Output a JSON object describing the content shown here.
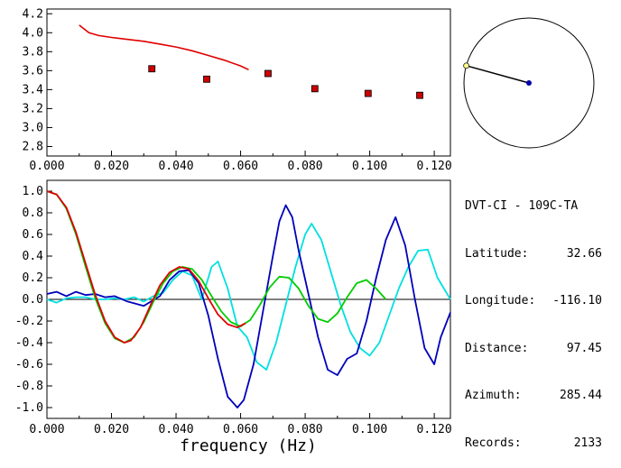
{
  "station": {
    "title": "DVT-CI - 109C-TA",
    "latitude_label": "Latitude:",
    "latitude": "32.66",
    "longitude_label": "Longitude:",
    "longitude": "-116.10",
    "distance_label": "Distance:",
    "distance": "97.45",
    "azimuth_label": "Azimuth:",
    "azimuth": "285.44",
    "records_label": "Records:",
    "records": "2133"
  },
  "colors": {
    "red": "#e00000",
    "green": "#00cc00",
    "blue": "#0000bb",
    "cyan": "#00e0e0",
    "marker_fill": "#cc0000",
    "station_dot": "#ffff88",
    "center_dot": "#0000aa"
  },
  "chart_data": [
    {
      "type": "scatter",
      "name": "dispersion",
      "xlim": [
        0.0,
        0.125
      ],
      "ylim": [
        2.7,
        4.25
      ],
      "xticks": [
        "0.000",
        "0.020",
        "0.040",
        "0.060",
        "0.080",
        "0.100",
        "0.120"
      ],
      "yticks": [
        "2.8",
        "3.0",
        "3.2",
        "3.4",
        "3.6",
        "3.8",
        "4.0",
        "4.2"
      ],
      "curve": {
        "x": [
          0.01,
          0.013,
          0.016,
          0.02,
          0.025,
          0.03,
          0.035,
          0.04,
          0.045,
          0.05,
          0.055,
          0.06,
          0.0625
        ],
        "y": [
          4.08,
          4.0,
          3.97,
          3.95,
          3.93,
          3.91,
          3.88,
          3.85,
          3.81,
          3.76,
          3.71,
          3.65,
          3.61
        ]
      },
      "points": {
        "x": [
          0.0325,
          0.0495,
          0.0685,
          0.083,
          0.0995,
          0.1155
        ],
        "y": [
          3.62,
          3.51,
          3.57,
          3.41,
          3.36,
          3.34
        ]
      }
    },
    {
      "type": "line",
      "name": "correlation",
      "xlabel": "frequency (Hz)",
      "xlim": [
        0.0,
        0.125
      ],
      "ylim": [
        -1.1,
        1.1
      ],
      "xticks": [
        "0.000",
        "0.020",
        "0.040",
        "0.060",
        "0.080",
        "0.100",
        "0.120"
      ],
      "yticks": [
        "1.0",
        "0.8",
        "0.6",
        "0.4",
        "0.2",
        "0.0",
        "-0.2",
        "-0.4",
        "-0.6",
        "-0.8",
        "-1.0"
      ],
      "series": [
        {
          "color": "red",
          "x": [
            0,
            0.003,
            0.006,
            0.009,
            0.012,
            0.015,
            0.018,
            0.021,
            0.024,
            0.026,
            0.029,
            0.032,
            0.035,
            0.038,
            0.041,
            0.044,
            0.047,
            0.05,
            0.053,
            0.056,
            0.059,
            0.0615
          ],
          "values": [
            1.0,
            0.97,
            0.85,
            0.62,
            0.33,
            0.04,
            -0.2,
            -0.35,
            -0.4,
            -0.38,
            -0.26,
            -0.06,
            0.13,
            0.25,
            0.3,
            0.28,
            0.17,
            0.01,
            -0.14,
            -0.23,
            -0.26,
            -0.22
          ]
        },
        {
          "color": "green",
          "x": [
            0,
            0.003,
            0.006,
            0.009,
            0.012,
            0.015,
            0.018,
            0.021,
            0.024,
            0.027,
            0.03,
            0.033,
            0.036,
            0.039,
            0.042,
            0.045,
            0.048,
            0.051,
            0.054,
            0.057,
            0.06,
            0.063,
            0.066,
            0.069,
            0.072,
            0.075,
            0.078,
            0.081,
            0.084,
            0.087,
            0.09,
            0.093,
            0.096,
            0.099,
            0.102,
            0.105
          ],
          "values": [
            1.0,
            0.97,
            0.84,
            0.6,
            0.3,
            0.01,
            -0.22,
            -0.36,
            -0.4,
            -0.35,
            -0.21,
            -0.02,
            0.15,
            0.26,
            0.3,
            0.28,
            0.18,
            0.03,
            -0.11,
            -0.21,
            -0.25,
            -0.19,
            -0.05,
            0.11,
            0.21,
            0.2,
            0.1,
            -0.06,
            -0.18,
            -0.21,
            -0.13,
            0.02,
            0.15,
            0.18,
            0.1,
            0.0
          ]
        },
        {
          "color": "blue",
          "x": [
            0,
            0.003,
            0.006,
            0.009,
            0.012,
            0.015,
            0.018,
            0.021,
            0.025,
            0.03,
            0.035,
            0.038,
            0.041,
            0.044,
            0.047,
            0.05,
            0.053,
            0.056,
            0.059,
            0.061,
            0.064,
            0.067,
            0.07,
            0.072,
            0.074,
            0.076,
            0.078,
            0.081,
            0.084,
            0.087,
            0.09,
            0.093,
            0.096,
            0.099,
            0.102,
            0.105,
            0.108,
            0.111,
            0.114,
            0.117,
            0.12,
            0.122,
            0.125
          ],
          "values": [
            0.05,
            0.07,
            0.03,
            0.07,
            0.04,
            0.05,
            0.02,
            0.03,
            -0.02,
            -0.06,
            0.03,
            0.18,
            0.26,
            0.27,
            0.15,
            -0.15,
            -0.55,
            -0.9,
            -1.0,
            -0.93,
            -0.6,
            -0.1,
            0.4,
            0.72,
            0.87,
            0.76,
            0.45,
            0.05,
            -0.35,
            -0.65,
            -0.7,
            -0.55,
            -0.5,
            -0.2,
            0.2,
            0.55,
            0.76,
            0.5,
            0.0,
            -0.45,
            -0.6,
            -0.35,
            -0.12
          ]
        },
        {
          "color": "cyan",
          "x": [
            0,
            0.003,
            0.006,
            0.009,
            0.012,
            0.015,
            0.018,
            0.021,
            0.024,
            0.027,
            0.03,
            0.033,
            0.036,
            0.039,
            0.042,
            0.045,
            0.048,
            0.051,
            0.053,
            0.056,
            0.059,
            0.062,
            0.065,
            0.068,
            0.071,
            0.074,
            0.077,
            0.08,
            0.082,
            0.085,
            0.088,
            0.091,
            0.094,
            0.097,
            0.1,
            0.103,
            0.106,
            0.109,
            0.112,
            0.115,
            0.118,
            0.121,
            0.125
          ],
          "values": [
            0.0,
            -0.03,
            0.01,
            0.02,
            0.02,
            0.0,
            0.0,
            0.01,
            0.0,
            0.02,
            -0.02,
            0.03,
            0.06,
            0.18,
            0.26,
            0.22,
            0.0,
            0.3,
            0.35,
            0.1,
            -0.25,
            -0.35,
            -0.58,
            -0.65,
            -0.4,
            -0.05,
            0.3,
            0.6,
            0.7,
            0.55,
            0.25,
            -0.05,
            -0.3,
            -0.45,
            -0.52,
            -0.4,
            -0.15,
            0.1,
            0.3,
            0.45,
            0.46,
            0.2,
            0.0
          ]
        }
      ]
    },
    {
      "type": "scatter",
      "name": "azimuth-map",
      "center": [
        0,
        0
      ],
      "station_azimuth_deg": 285.44,
      "station_radius_fraction": 1.0
    }
  ]
}
